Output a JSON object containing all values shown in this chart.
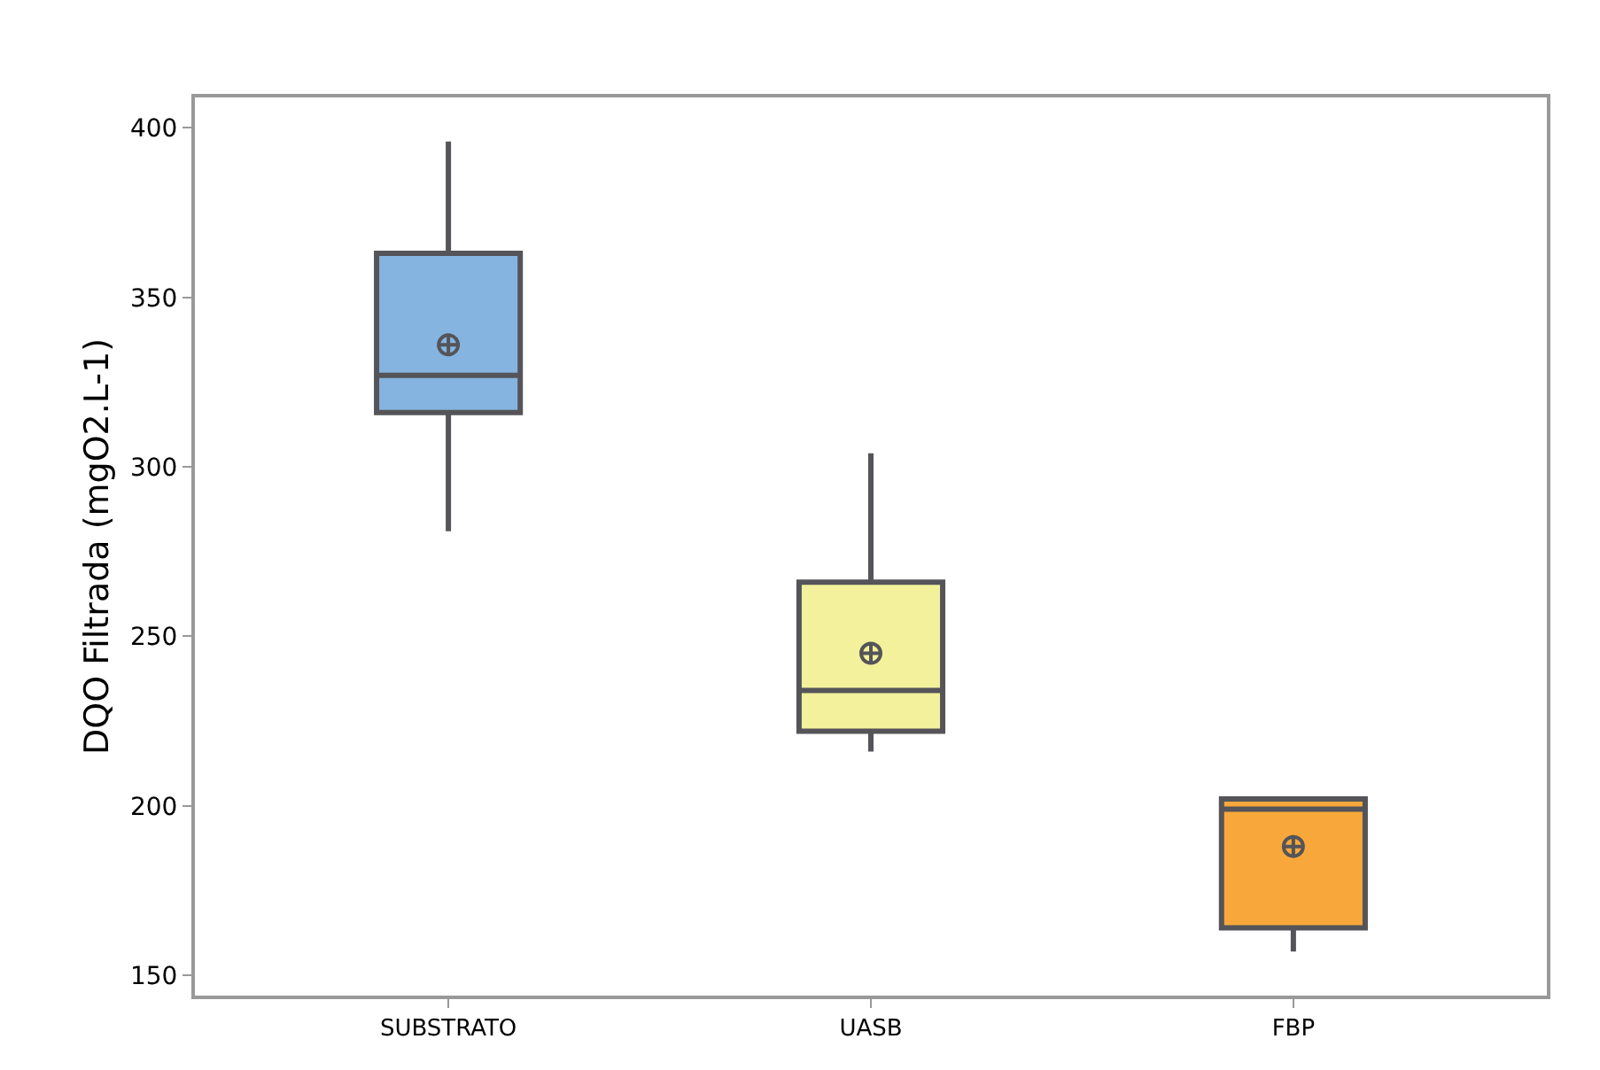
{
  "chart_data": {
    "type": "box",
    "ylabel": "DQO Filtrada (mgO2.L-1)",
    "categories": [
      "SUBSTRATO",
      "UASB",
      "FBP"
    ],
    "colors": [
      "#85b4e0",
      "#f3f19c",
      "#f8a83a"
    ],
    "boxes": [
      {
        "low": 281,
        "q1": 316,
        "median": 327,
        "q3": 363,
        "high": 396,
        "mean": 336
      },
      {
        "low": 216,
        "q1": 222,
        "median": 234,
        "q3": 266,
        "high": 304,
        "mean": 245
      },
      {
        "low": 157,
        "q1": 164,
        "median": 199,
        "q3": 202,
        "high": 202,
        "mean": 188
      }
    ],
    "ylim": [
      144,
      409
    ],
    "yticks": [
      150,
      200,
      250,
      300,
      350,
      400
    ]
  }
}
